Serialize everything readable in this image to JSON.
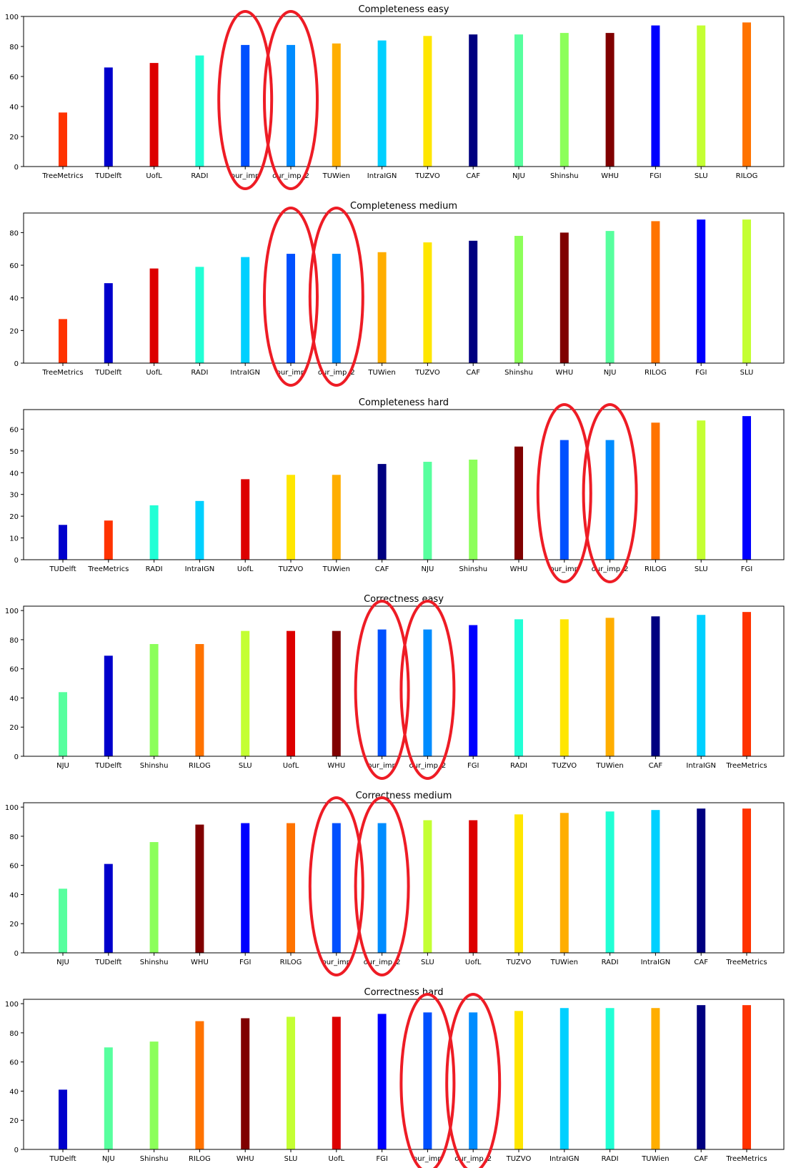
{
  "chart_data": [
    {
      "type": "bar",
      "title": "Completeness easy",
      "xlabel": "",
      "ylabel": "",
      "ylim": [
        0,
        100
      ],
      "yticks": [
        0,
        20,
        40,
        60,
        80,
        100
      ],
      "categories": [
        "TreeMetrics",
        "TUDelft",
        "UofL",
        "RADI",
        "our_imp",
        "our_imp_2",
        "TUWien",
        "IntraIGN",
        "TUZVO",
        "CAF",
        "NJU",
        "Shinshu",
        "WHU",
        "FGI",
        "SLU",
        "RILOG"
      ],
      "values": [
        36,
        66,
        69,
        74,
        81,
        81,
        82,
        84,
        87,
        88,
        88,
        89,
        89,
        94,
        94,
        96
      ],
      "highlighted": [
        "our_imp",
        "our_imp_2"
      ]
    },
    {
      "type": "bar",
      "title": "Completeness medium",
      "xlabel": "",
      "ylabel": "",
      "ylim": [
        0,
        92
      ],
      "yticks": [
        0,
        20,
        40,
        60,
        80
      ],
      "categories": [
        "TreeMetrics",
        "TUDelft",
        "UofL",
        "RADI",
        "IntraIGN",
        "our_imp",
        "our_imp_2",
        "TUWien",
        "TUZVO",
        "CAF",
        "Shinshu",
        "WHU",
        "NJU",
        "RILOG",
        "FGI",
        "SLU"
      ],
      "values": [
        27,
        49,
        58,
        59,
        65,
        67,
        67,
        68,
        74,
        75,
        78,
        80,
        81,
        87,
        88,
        88
      ],
      "highlighted": [
        "our_imp",
        "our_imp_2"
      ]
    },
    {
      "type": "bar",
      "title": "Completeness hard",
      "xlabel": "",
      "ylabel": "",
      "ylim": [
        0,
        69
      ],
      "yticks": [
        0,
        10,
        20,
        30,
        40,
        50,
        60
      ],
      "categories": [
        "TUDelft",
        "TreeMetrics",
        "RADI",
        "IntraIGN",
        "UofL",
        "TUZVO",
        "TUWien",
        "CAF",
        "NJU",
        "Shinshu",
        "WHU",
        "our_imp",
        "our_imp_2",
        "RILOG",
        "SLU",
        "FGI"
      ],
      "values": [
        16,
        18,
        25,
        27,
        37,
        39,
        39,
        44,
        45,
        46,
        52,
        55,
        55,
        63,
        64,
        66
      ],
      "highlighted": [
        "our_imp",
        "our_imp_2"
      ]
    },
    {
      "type": "bar",
      "title": "Correctness easy",
      "xlabel": "",
      "ylabel": "",
      "ylim": [
        0,
        103
      ],
      "yticks": [
        0,
        20,
        40,
        60,
        80,
        100
      ],
      "categories": [
        "NJU",
        "TUDelft",
        "Shinshu",
        "RILOG",
        "SLU",
        "UofL",
        "WHU",
        "our_imp",
        "our_imp_2",
        "FGI",
        "RADI",
        "TUZVO",
        "TUWien",
        "CAF",
        "IntraIGN",
        "TreeMetrics"
      ],
      "values": [
        44,
        69,
        77,
        77,
        86,
        86,
        86,
        87,
        87,
        90,
        94,
        94,
        95,
        96,
        97,
        99
      ],
      "highlighted": [
        "our_imp",
        "our_imp_2"
      ]
    },
    {
      "type": "bar",
      "title": "Correctness medium",
      "xlabel": "",
      "ylabel": "",
      "ylim": [
        0,
        103
      ],
      "yticks": [
        0,
        20,
        40,
        60,
        80,
        100
      ],
      "categories": [
        "NJU",
        "TUDelft",
        "Shinshu",
        "WHU",
        "FGI",
        "RILOG",
        "our_imp",
        "our_imp_2",
        "SLU",
        "UofL",
        "TUZVO",
        "TUWien",
        "RADI",
        "IntraIGN",
        "CAF",
        "TreeMetrics"
      ],
      "values": [
        44,
        61,
        76,
        88,
        89,
        89,
        89,
        89,
        91,
        91,
        95,
        96,
        97,
        98,
        99,
        99
      ],
      "highlighted": [
        "our_imp",
        "our_imp_2"
      ]
    },
    {
      "type": "bar",
      "title": "Correctness hard",
      "xlabel": "",
      "ylabel": "",
      "ylim": [
        0,
        103
      ],
      "yticks": [
        0,
        20,
        40,
        60,
        80,
        100
      ],
      "categories": [
        "TUDelft",
        "NJU",
        "Shinshu",
        "RILOG",
        "WHU",
        "SLU",
        "UofL",
        "FGI",
        "our_imp",
        "our_imp_2",
        "TUZVO",
        "IntraIGN",
        "RADI",
        "TUWien",
        "CAF",
        "TreeMetrics"
      ],
      "values": [
        41,
        70,
        74,
        88,
        90,
        91,
        91,
        93,
        94,
        94,
        95,
        97,
        97,
        97,
        99,
        99
      ],
      "highlighted": [
        "our_imp",
        "our_imp_2"
      ]
    }
  ],
  "colors": {
    "TreeMetrics": "#ff3300",
    "TUDelft": "#0000cc",
    "UofL": "#dd0000",
    "RADI": "#22ffd5",
    "our_imp": "#0050ff",
    "our_imp_2": "#008cff",
    "TUWien": "#ffae00",
    "IntraIGN": "#00d0ff",
    "TUZVO": "#ffe600",
    "CAF": "#000080",
    "NJU": "#57ff9e",
    "Shinshu": "#8cff5a",
    "WHU": "#800000",
    "FGI": "#0000ff",
    "SLU": "#c4ff33",
    "RILOG": "#ff7300",
    "highlight_ring": "#ee1c25"
  }
}
